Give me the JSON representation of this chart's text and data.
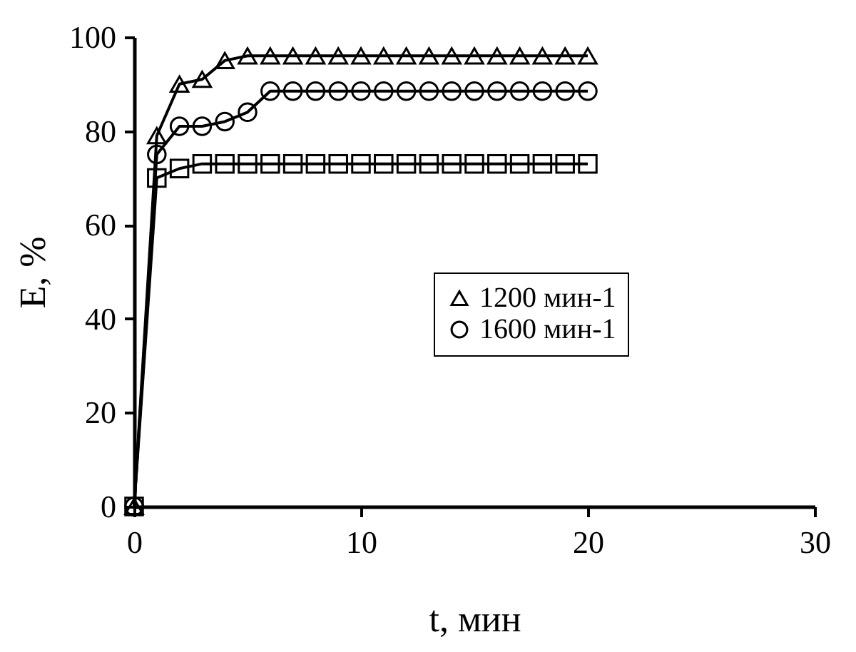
{
  "chart_data": {
    "type": "line",
    "xlabel": "t, мин",
    "ylabel": "E, %",
    "x": [
      0,
      1,
      2,
      3,
      4,
      5,
      6,
      7,
      8,
      9,
      10,
      11,
      12,
      13,
      14,
      15,
      16,
      17,
      18,
      19,
      20
    ],
    "series": [
      {
        "name": "1200 мин-1",
        "color": "#000000",
        "marker": "triangle",
        "values": [
          0,
          79,
          90,
          91,
          95,
          96,
          96,
          96,
          96,
          96,
          96,
          96,
          96,
          96,
          96,
          96,
          96,
          96,
          96,
          96,
          96
        ]
      },
      {
        "name": "1600 мин-1",
        "color": "#000000",
        "marker": "circle",
        "values": [
          0,
          75,
          81,
          81,
          82,
          84,
          88.5,
          88.5,
          88.5,
          88.5,
          88.5,
          88.5,
          88.5,
          88.5,
          88.5,
          88.5,
          88.5,
          88.5,
          88.5,
          88.5,
          88.5
        ]
      },
      {
        "color": "#000000",
        "marker": "square",
        "values": [
          0,
          70,
          72,
          73,
          73,
          73,
          73,
          73,
          73,
          73,
          73,
          73,
          73,
          73,
          73,
          73,
          73,
          73,
          73,
          73,
          73
        ]
      }
    ],
    "xlim": [
      0,
      30
    ],
    "xticks": [
      0,
      10,
      20,
      30
    ],
    "ylim": [
      0,
      100
    ],
    "yticks": [
      0,
      20,
      40,
      60,
      80,
      100
    ],
    "grid": false,
    "legend": "right",
    "line_style": "solid"
  }
}
